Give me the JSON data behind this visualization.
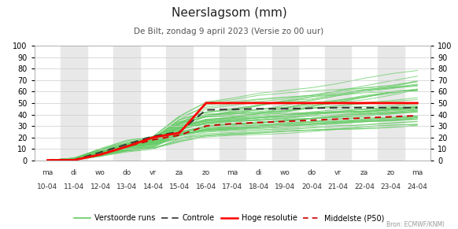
{
  "title": "Neerslagsom (mm)",
  "subtitle": "De Bilt, zondag 9 april 2023 (Versie zo 00 uur)",
  "source": "Bron: ECMWF/KNMI",
  "x_day_labels": [
    "ma",
    "di",
    "wo",
    "do",
    "vr",
    "za",
    "zo",
    "ma",
    "di",
    "wo",
    "do",
    "vr",
    "za",
    "zo",
    "ma"
  ],
  "x_date_labels": [
    "10-04",
    "11-04",
    "12-04",
    "13-04",
    "14-04",
    "15-04",
    "16-04",
    "17-04",
    "18-04",
    "19-04",
    "20-04",
    "21-04",
    "22-04",
    "23-04",
    "24-04"
  ],
  "ylim": [
    0,
    100
  ],
  "yticks": [
    0,
    10,
    20,
    30,
    40,
    50,
    60,
    70,
    80,
    90,
    100
  ],
  "background_color": "#ffffff",
  "stripe_color": "#e8e8e8",
  "grid_color": "#cccccc",
  "ensemble_color": "#66cc66",
  "control_color": "#333333",
  "hires_color": "#ff0000",
  "median_color": "#cc0000",
  "legend_labels": [
    "Verstoorde runs",
    "Controle",
    "Hoge resolutie",
    "Middelste (P50)"
  ],
  "control": [
    0,
    0.3,
    7,
    14,
    21,
    25,
    44,
    44.5,
    45,
    45,
    45.5,
    46,
    46,
    46,
    46
  ],
  "hires": [
    0,
    0.2,
    5,
    12,
    20,
    24,
    50,
    50,
    50,
    50,
    50,
    50,
    50,
    50,
    50
  ],
  "median": [
    0,
    0.2,
    5,
    12,
    18,
    22,
    30,
    32,
    33,
    34,
    35,
    36,
    37,
    38,
    39
  ]
}
